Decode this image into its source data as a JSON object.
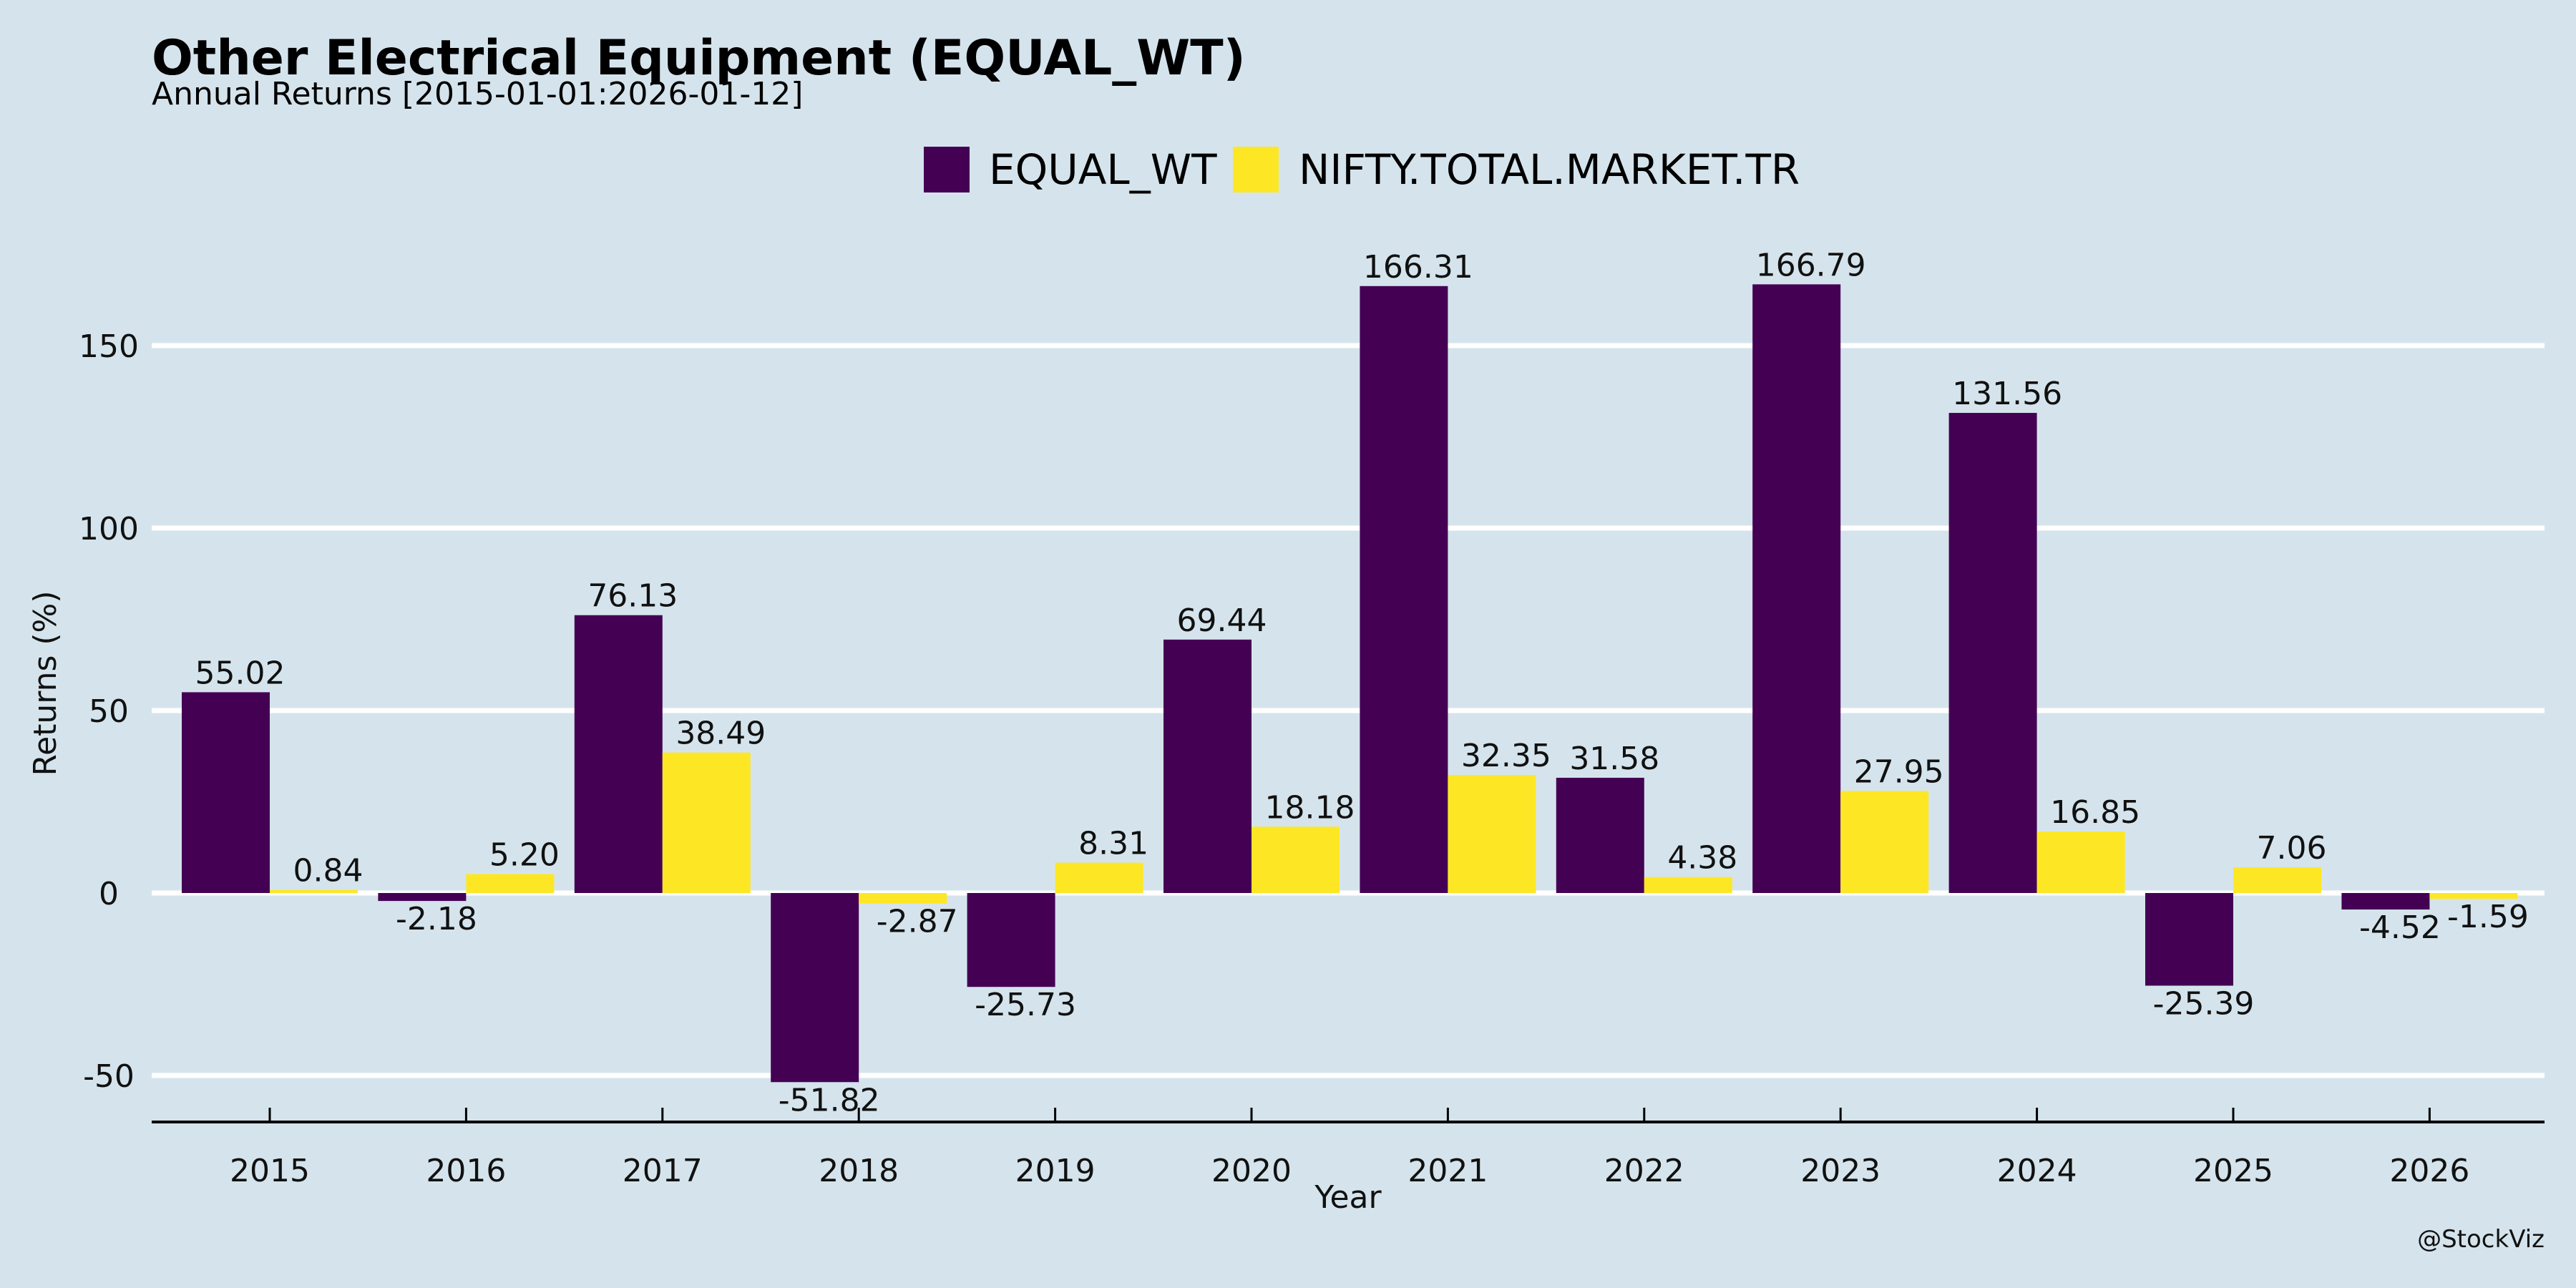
{
  "chart_data": {
    "type": "bar",
    "title": "Other Electrical Equipment (EQUAL_WT)",
    "subtitle": "Annual Returns [2015-01-01:2026-01-12]",
    "xlabel": "Year",
    "ylabel": "Returns (%)",
    "ylim": [
      -57,
      175
    ],
    "yticks": [
      -50,
      0,
      50,
      100,
      150
    ],
    "ytick_labels": [
      "-50",
      "0",
      "50",
      "100",
      "150"
    ],
    "grid": true,
    "legend_position": "top-center",
    "categories": [
      "2015",
      "2016",
      "2017",
      "2018",
      "2019",
      "2020",
      "2021",
      "2022",
      "2023",
      "2024",
      "2025",
      "2026"
    ],
    "series": [
      {
        "name": "EQUAL_WT",
        "color": "#440154",
        "values": [
          55.02,
          -2.18,
          76.13,
          -51.82,
          -25.73,
          69.44,
          166.31,
          31.58,
          166.79,
          131.56,
          -25.39,
          -4.52
        ],
        "labels": [
          "55.02",
          "-2.18",
          "76.13",
          "-51.82",
          "-25.73",
          "69.44",
          "166.31",
          "31.58",
          "166.79",
          "131.56",
          "-25.39",
          "-4.52"
        ]
      },
      {
        "name": "NIFTY.TOTAL.MARKET.TR",
        "color": "#fde725",
        "values": [
          0.84,
          5.2,
          38.49,
          -2.87,
          8.31,
          18.18,
          32.35,
          4.38,
          27.95,
          16.85,
          7.06,
          -1.59
        ],
        "labels": [
          "0.84",
          "5.20",
          "38.49",
          "-2.87",
          "8.31",
          "18.18",
          "32.35",
          "4.38",
          "27.95",
          "16.85",
          "7.06",
          "-1.59"
        ]
      }
    ],
    "credit": "@StockViz"
  },
  "colors": {
    "background": "#d5e4ec",
    "gridline": "#ffffff",
    "axis": "#000000"
  }
}
